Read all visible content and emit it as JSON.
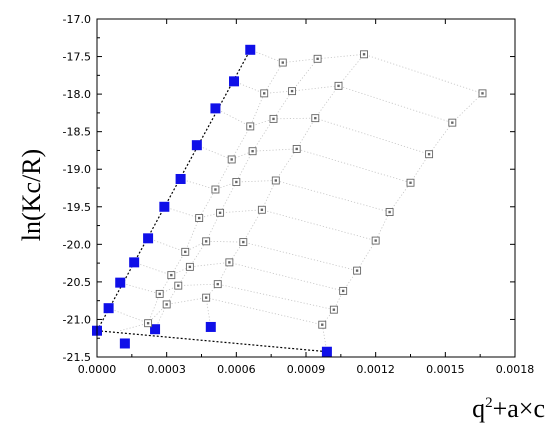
{
  "chart_data": {
    "type": "scatter",
    "title": "",
    "xlabel": {
      "base": "q",
      "sup": "2",
      "rest": "+a×c"
    },
    "ylabel": "ln(Kc/R)",
    "xlim": [
      0.0,
      0.0018
    ],
    "ylim": [
      -21.5,
      -17.0
    ],
    "xticks": [
      "0.0000",
      "0.0003",
      "0.0006",
      "0.0009",
      "0.0012",
      "0.0015",
      "0.0018"
    ],
    "xtick_values": [
      0.0,
      0.0003,
      0.0006,
      0.0009,
      0.0012,
      0.0015,
      0.0018
    ],
    "yticks": [
      "-17.0",
      "-17.5",
      "-18.0",
      "-18.5",
      "-19.0",
      "-19.5",
      "-20.0",
      "-20.5",
      "-21.0",
      "-21.5"
    ],
    "ytick_values": [
      -17.0,
      -17.5,
      -18.0,
      -18.5,
      -19.0,
      -19.5,
      -20.0,
      -20.5,
      -21.0,
      -21.5
    ],
    "grid": false,
    "colors": {
      "extrapolated": "#1010e8",
      "measured": "#666666",
      "line": "#000000"
    },
    "series": [
      {
        "marker": "filled-square",
        "points": [
          [
            0.00066,
            -17.41
          ],
          [
            0.00059,
            -17.83
          ],
          [
            0.00051,
            -18.19
          ],
          [
            0.00043,
            -18.68
          ],
          [
            0.00036,
            -19.13
          ],
          [
            0.00029,
            -19.5
          ],
          [
            0.00022,
            -19.92
          ],
          [
            0.00016,
            -20.24
          ],
          [
            0.0001,
            -20.51
          ],
          [
            5e-05,
            -20.85
          ],
          [
            0.0,
            -21.15
          ],
          [
            0.00012,
            -21.32
          ],
          [
            0.00025,
            -21.13
          ],
          [
            0.00049,
            -21.1
          ],
          [
            0.00099,
            -21.43
          ]
        ]
      },
      {
        "marker": "open-square",
        "points": [
          [
            0.0008,
            -17.58
          ],
          [
            0.00095,
            -17.53
          ],
          [
            0.00115,
            -17.47
          ],
          [
            0.00166,
            -17.99
          ],
          [
            0.00072,
            -17.99
          ],
          [
            0.00084,
            -17.96
          ],
          [
            0.00104,
            -17.89
          ],
          [
            0.00153,
            -18.38
          ],
          [
            0.00066,
            -18.43
          ],
          [
            0.00076,
            -18.33
          ],
          [
            0.00094,
            -18.32
          ],
          [
            0.00143,
            -18.8
          ],
          [
            0.00058,
            -18.87
          ],
          [
            0.00067,
            -18.76
          ],
          [
            0.00086,
            -18.73
          ],
          [
            0.00135,
            -19.18
          ],
          [
            0.00051,
            -19.27
          ],
          [
            0.0006,
            -19.17
          ],
          [
            0.00077,
            -19.15
          ],
          [
            0.00126,
            -19.57
          ],
          [
            0.00044,
            -19.65
          ],
          [
            0.00053,
            -19.58
          ],
          [
            0.00071,
            -19.54
          ],
          [
            0.0012,
            -19.95
          ],
          [
            0.00038,
            -20.1
          ],
          [
            0.00047,
            -19.96
          ],
          [
            0.00063,
            -19.97
          ],
          [
            0.00112,
            -20.35
          ],
          [
            0.00032,
            -20.41
          ],
          [
            0.0004,
            -20.3
          ],
          [
            0.00057,
            -20.24
          ],
          [
            0.00106,
            -20.62
          ],
          [
            0.00027,
            -20.66
          ],
          [
            0.00035,
            -20.55
          ],
          [
            0.00052,
            -20.53
          ],
          [
            0.00102,
            -20.87
          ],
          [
            0.00022,
            -21.05
          ],
          [
            0.0003,
            -20.8
          ],
          [
            0.00047,
            -20.71
          ],
          [
            0.00097,
            -21.07
          ]
        ]
      }
    ],
    "extrapolation_lines": [
      [
        [
          0.0,
          -21.15
        ],
        [
          0.00066,
          -17.41
        ]
      ],
      [
        [
          0.0,
          -21.15
        ],
        [
          0.00099,
          -21.43
        ]
      ]
    ],
    "guide_lines_concentration": [
      [
        [
          0.00066,
          -17.41
        ],
        [
          0.0008,
          -17.58
        ],
        [
          0.00095,
          -17.53
        ],
        [
          0.00115,
          -17.47
        ],
        [
          0.00166,
          -17.99
        ]
      ],
      [
        [
          0.00059,
          -17.83
        ],
        [
          0.00072,
          -17.99
        ],
        [
          0.00084,
          -17.96
        ],
        [
          0.00104,
          -17.89
        ],
        [
          0.00153,
          -18.38
        ]
      ],
      [
        [
          0.00051,
          -18.19
        ],
        [
          0.00066,
          -18.43
        ],
        [
          0.00076,
          -18.33
        ],
        [
          0.00094,
          -18.32
        ],
        [
          0.00143,
          -18.8
        ]
      ],
      [
        [
          0.00043,
          -18.68
        ],
        [
          0.00058,
          -18.87
        ],
        [
          0.00067,
          -18.76
        ],
        [
          0.00086,
          -18.73
        ],
        [
          0.00135,
          -19.18
        ]
      ],
      [
        [
          0.00036,
          -19.13
        ],
        [
          0.00051,
          -19.27
        ],
        [
          0.0006,
          -19.17
        ],
        [
          0.00077,
          -19.15
        ],
        [
          0.00126,
          -19.57
        ]
      ],
      [
        [
          0.00029,
          -19.5
        ],
        [
          0.00044,
          -19.65
        ],
        [
          0.00053,
          -19.58
        ],
        [
          0.00071,
          -19.54
        ],
        [
          0.0012,
          -19.95
        ]
      ],
      [
        [
          0.00022,
          -19.92
        ],
        [
          0.00038,
          -20.1
        ],
        [
          0.00047,
          -19.96
        ],
        [
          0.00063,
          -19.97
        ],
        [
          0.00112,
          -20.35
        ]
      ],
      [
        [
          0.00016,
          -20.24
        ],
        [
          0.00032,
          -20.41
        ],
        [
          0.0004,
          -20.3
        ],
        [
          0.00057,
          -20.24
        ],
        [
          0.00106,
          -20.62
        ]
      ],
      [
        [
          0.0001,
          -20.51
        ],
        [
          0.00027,
          -20.66
        ],
        [
          0.00035,
          -20.55
        ],
        [
          0.00052,
          -20.53
        ],
        [
          0.00102,
          -20.87
        ]
      ],
      [
        [
          5e-05,
          -20.85
        ],
        [
          0.00022,
          -21.05
        ],
        [
          0.0003,
          -20.8
        ],
        [
          0.00047,
          -20.71
        ],
        [
          0.00097,
          -21.07
        ]
      ]
    ],
    "guide_lines_angle": [
      [
        [
          0.0001,
          -21.15
        ],
        [
          0.00022,
          -21.05
        ],
        [
          0.00027,
          -20.66
        ],
        [
          0.00032,
          -20.41
        ],
        [
          0.00038,
          -20.1
        ],
        [
          0.00044,
          -19.65
        ],
        [
          0.00051,
          -19.27
        ],
        [
          0.00058,
          -18.87
        ],
        [
          0.00066,
          -18.43
        ],
        [
          0.00072,
          -17.99
        ],
        [
          0.0008,
          -17.58
        ]
      ],
      [
        [
          0.00025,
          -21.13
        ],
        [
          0.0003,
          -20.8
        ],
        [
          0.00035,
          -20.55
        ],
        [
          0.0004,
          -20.3
        ],
        [
          0.00047,
          -19.96
        ],
        [
          0.00053,
          -19.58
        ],
        [
          0.0006,
          -19.17
        ],
        [
          0.00067,
          -18.76
        ],
        [
          0.00076,
          -18.33
        ],
        [
          0.00084,
          -17.96
        ],
        [
          0.00095,
          -17.53
        ]
      ],
      [
        [
          0.00049,
          -21.1
        ],
        [
          0.00047,
          -20.71
        ],
        [
          0.00052,
          -20.53
        ],
        [
          0.00057,
          -20.24
        ],
        [
          0.00063,
          -19.97
        ],
        [
          0.00071,
          -19.54
        ],
        [
          0.00077,
          -19.15
        ],
        [
          0.00086,
          -18.73
        ],
        [
          0.00094,
          -18.32
        ],
        [
          0.00104,
          -17.89
        ],
        [
          0.00115,
          -17.47
        ]
      ],
      [
        [
          0.00099,
          -21.43
        ],
        [
          0.00097,
          -21.07
        ],
        [
          0.00102,
          -20.87
        ],
        [
          0.00106,
          -20.62
        ],
        [
          0.00112,
          -20.35
        ],
        [
          0.0012,
          -19.95
        ],
        [
          0.00126,
          -19.57
        ],
        [
          0.00135,
          -19.18
        ],
        [
          0.00143,
          -18.8
        ],
        [
          0.00153,
          -18.38
        ],
        [
          0.00166,
          -17.99
        ]
      ]
    ]
  }
}
